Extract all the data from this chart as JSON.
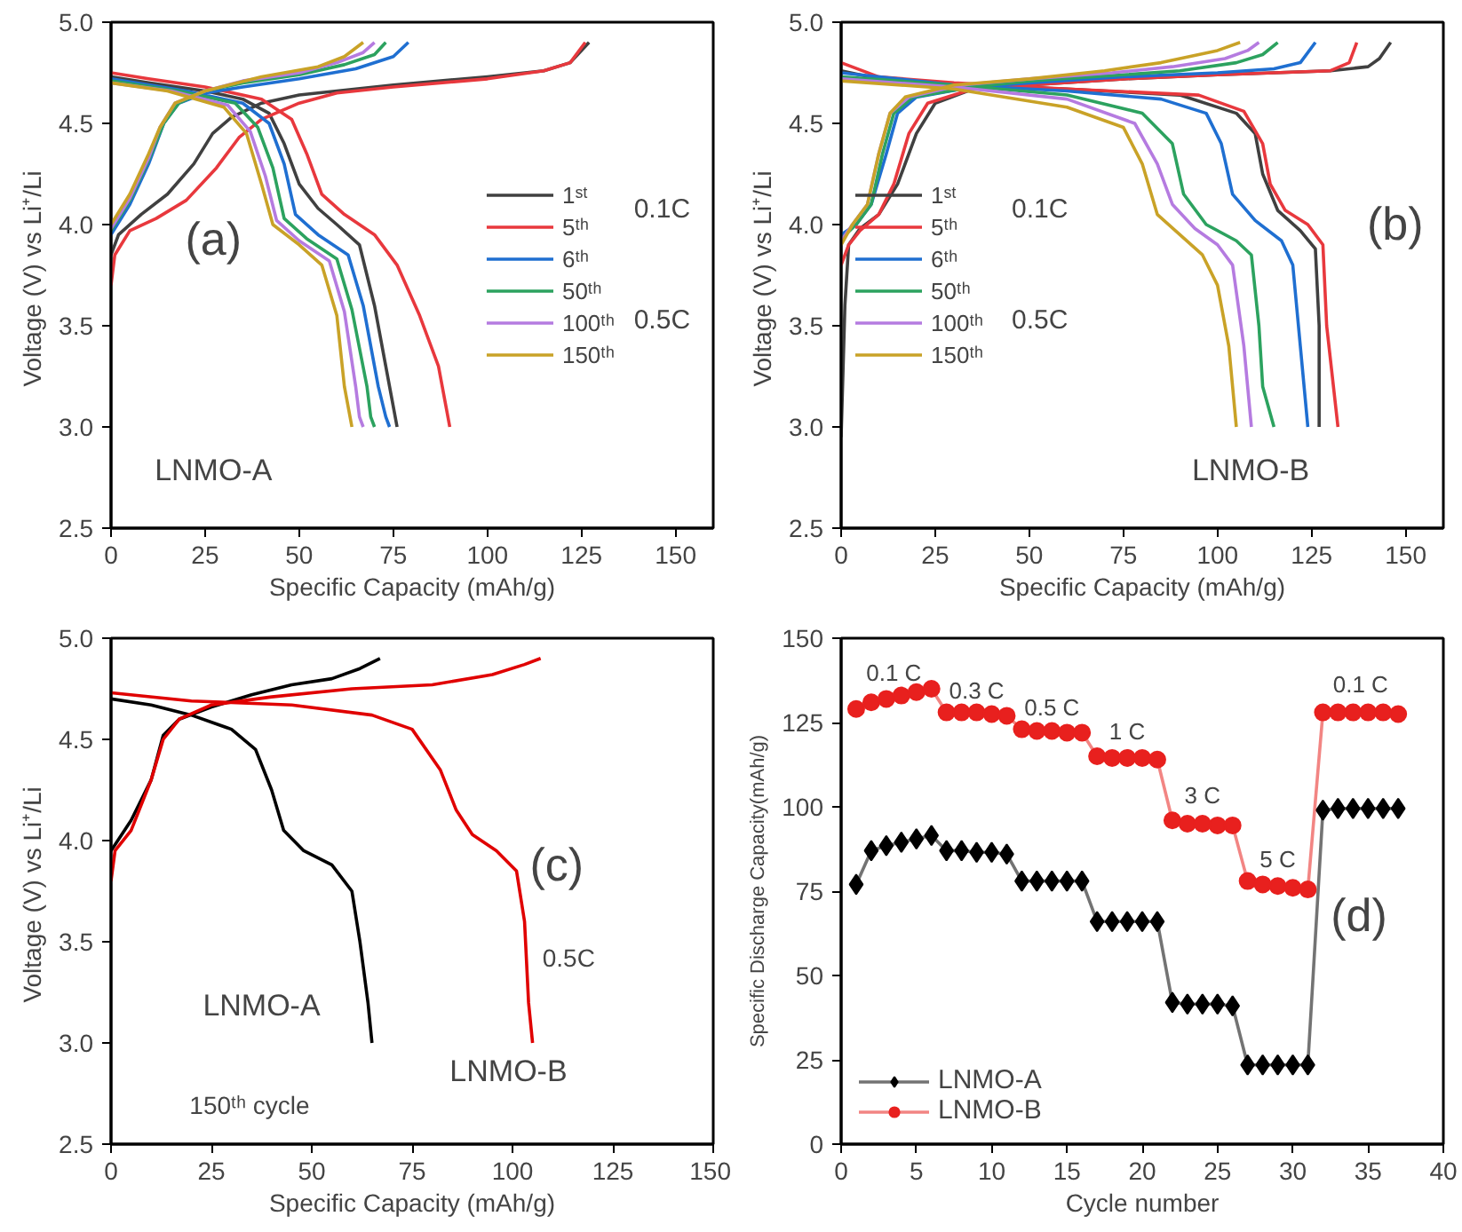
{
  "chart_data": [
    {
      "type": "line",
      "xlabel": "Specific Capacity (mAh/g)",
      "ylabel": "Voltage  (V) vs Li⁺/Li",
      "xlim": [
        0,
        160
      ],
      "ylim": [
        2.5,
        5.0
      ],
      "xticks": [
        0,
        25,
        50,
        75,
        100,
        125,
        150
      ],
      "yticks": [
        2.5,
        {
          "value": 3,
          "label": "3.0"
        },
        3.5,
        {
          "value": 4,
          "label": "4.0"
        },
        4.5,
        {
          "value": 5,
          "label": "5.0"
        }
      ],
      "grid": false,
      "legend": "right",
      "line_style": "solid",
      "marker": "none",
      "annotations": [
        "(a)",
        "LNMO-A",
        "0.1C",
        "0.5C"
      ],
      "series": [
        {
          "name": "1ˢᵗ",
          "color": "#404040",
          "x": [
            0,
            2,
            8,
            15,
            22,
            27,
            32,
            40,
            50,
            60,
            75,
            100,
            115,
            122,
            127,
            null,
            0,
            10,
            25,
            35,
            42,
            46,
            50,
            55,
            60,
            66,
            70,
            73,
            75,
            76
          ],
          "values": [
            3.85,
            3.95,
            4.05,
            4.15,
            4.3,
            4.45,
            4.53,
            4.6,
            4.64,
            4.66,
            4.69,
            4.73,
            4.76,
            4.8,
            4.9,
            null,
            4.73,
            4.7,
            4.66,
            4.62,
            4.55,
            4.4,
            4.2,
            4.08,
            4.0,
            3.9,
            3.6,
            3.3,
            3.1,
            3.0
          ]
        },
        {
          "name": "5ᵗʰ",
          "color": "#e8383d",
          "x": [
            0,
            1,
            5,
            12,
            20,
            28,
            34,
            40,
            50,
            60,
            75,
            100,
            115,
            122,
            126,
            null,
            0,
            10,
            25,
            40,
            48,
            52,
            56,
            62,
            70,
            76,
            82,
            87,
            89,
            90
          ],
          "values": [
            3.7,
            3.85,
            3.97,
            4.03,
            4.12,
            4.28,
            4.43,
            4.52,
            4.6,
            4.65,
            4.68,
            4.72,
            4.76,
            4.8,
            4.9,
            null,
            4.75,
            4.72,
            4.68,
            4.62,
            4.52,
            4.35,
            4.15,
            4.05,
            3.95,
            3.8,
            3.55,
            3.3,
            3.1,
            3.0
          ]
        },
        {
          "name": "6ᵗʰ",
          "color": "#1f6fd1",
          "x": [
            0,
            5,
            10,
            14,
            18,
            25,
            35,
            50,
            65,
            75,
            79,
            null,
            0,
            20,
            35,
            42,
            46,
            49,
            55,
            63,
            67,
            71,
            73,
            74
          ],
          "values": [
            3.95,
            4.1,
            4.3,
            4.5,
            4.6,
            4.65,
            4.68,
            4.72,
            4.77,
            4.83,
            4.9,
            null,
            4.72,
            4.66,
            4.6,
            4.5,
            4.3,
            4.05,
            3.95,
            3.85,
            3.6,
            3.2,
            3.05,
            3.0
          ]
        },
        {
          "name": "50ᵗʰ",
          "color": "#2ca25f",
          "x": [
            0,
            5,
            10,
            14,
            18,
            25,
            35,
            50,
            62,
            70,
            73,
            null,
            0,
            18,
            33,
            39,
            43,
            46,
            52,
            60,
            64,
            68,
            69,
            70
          ],
          "values": [
            3.97,
            4.12,
            4.32,
            4.5,
            4.6,
            4.66,
            4.7,
            4.74,
            4.79,
            4.84,
            4.9,
            null,
            4.71,
            4.66,
            4.6,
            4.48,
            4.28,
            4.03,
            3.93,
            3.83,
            3.58,
            3.2,
            3.05,
            3.0
          ]
        },
        {
          "name": "100ᵗʰ",
          "color": "#b57be0",
          "x": [
            0,
            5,
            10,
            13,
            17,
            25,
            35,
            50,
            60,
            67,
            70,
            null,
            0,
            16,
            31,
            37,
            41,
            44,
            50,
            58,
            62,
            65,
            66,
            67
          ],
          "values": [
            3.98,
            4.13,
            4.33,
            4.48,
            4.6,
            4.66,
            4.71,
            4.75,
            4.8,
            4.85,
            4.9,
            null,
            4.7,
            4.66,
            4.59,
            4.46,
            4.24,
            4.02,
            3.92,
            3.82,
            3.57,
            3.2,
            3.05,
            3.0
          ]
        },
        {
          "name": "150ᵗʰ",
          "color": "#c9a227",
          "x": [
            0,
            5,
            10,
            13,
            17,
            25,
            40,
            55,
            62,
            67,
            null,
            0,
            15,
            30,
            36,
            40,
            43,
            50,
            56,
            60,
            62,
            64
          ],
          "values": [
            4.0,
            4.15,
            4.35,
            4.48,
            4.6,
            4.66,
            4.73,
            4.78,
            4.83,
            4.9,
            null,
            4.7,
            4.66,
            4.58,
            4.45,
            4.2,
            4.0,
            3.9,
            3.8,
            3.55,
            3.2,
            3.0
          ]
        }
      ]
    },
    {
      "type": "line",
      "xlabel": "Specific Capacity (mAh/g)",
      "ylabel": "Voltage  (V) vs Li⁺/Li",
      "xlim": [
        0,
        160
      ],
      "ylim": [
        2.5,
        5.0
      ],
      "xticks": [
        0,
        25,
        50,
        75,
        100,
        125,
        150
      ],
      "yticks": [
        2.5,
        {
          "value": 3,
          "label": "3.0"
        },
        3.5,
        {
          "value": 4,
          "label": "4.0"
        },
        4.5,
        {
          "value": 5,
          "label": "5.0"
        }
      ],
      "grid": false,
      "legend": "left",
      "line_style": "solid",
      "marker": "none",
      "annotations": [
        "(b)",
        "LNMO-B",
        "0.1C",
        "0.5C"
      ],
      "series": [
        {
          "name": "1ˢᵗ",
          "color": "#404040",
          "x": [
            0,
            1,
            2,
            5,
            10,
            15,
            20,
            25,
            35,
            50,
            75,
            100,
            130,
            140,
            143,
            146,
            null,
            0,
            10,
            30,
            60,
            90,
            105,
            110,
            112,
            116,
            122,
            126,
            127,
            127
          ],
          "values": [
            2.95,
            3.6,
            3.9,
            3.98,
            4.05,
            4.2,
            4.45,
            4.6,
            4.67,
            4.69,
            4.72,
            4.74,
            4.76,
            4.78,
            4.82,
            4.9,
            null,
            4.76,
            4.72,
            4.69,
            4.67,
            4.64,
            4.55,
            4.45,
            4.25,
            4.07,
            3.97,
            3.88,
            3.5,
            3.0
          ]
        },
        {
          "name": "5ᵗʰ",
          "color": "#e8383d",
          "x": [
            0,
            2,
            5,
            10,
            14,
            18,
            23,
            35,
            50,
            75,
            100,
            130,
            135,
            137,
            null,
            0,
            10,
            30,
            60,
            95,
            107,
            112,
            114,
            118,
            124,
            128,
            129,
            132
          ],
          "values": [
            3.8,
            3.9,
            3.97,
            4.05,
            4.2,
            4.45,
            4.6,
            4.67,
            4.69,
            4.72,
            4.74,
            4.76,
            4.8,
            4.9,
            null,
            4.8,
            4.73,
            4.7,
            4.67,
            4.64,
            4.56,
            4.4,
            4.2,
            4.07,
            4.0,
            3.9,
            3.5,
            3.0
          ]
        },
        {
          "name": "6ᵗʰ",
          "color": "#1f6fd1",
          "x": [
            0,
            4,
            8,
            12,
            15,
            20,
            35,
            50,
            75,
            100,
            115,
            122,
            126,
            null,
            0,
            30,
            60,
            85,
            97,
            101,
            104,
            110,
            117,
            120,
            122,
            124
          ],
          "values": [
            3.95,
            4.0,
            4.1,
            4.35,
            4.55,
            4.63,
            4.68,
            4.7,
            4.73,
            4.75,
            4.77,
            4.8,
            4.9,
            null,
            4.75,
            4.69,
            4.66,
            4.62,
            4.55,
            4.4,
            4.15,
            4.02,
            3.92,
            3.8,
            3.4,
            3.0
          ]
        },
        {
          "name": "50ᵗʰ",
          "color": "#2ca25f",
          "x": [
            0,
            4,
            8,
            11,
            14,
            19,
            35,
            50,
            75,
            90,
            105,
            112,
            116,
            null,
            0,
            30,
            60,
            80,
            88,
            91,
            97,
            105,
            109,
            111,
            112,
            115
          ],
          "values": [
            3.93,
            4.0,
            4.1,
            4.35,
            4.55,
            4.63,
            4.68,
            4.71,
            4.74,
            4.76,
            4.8,
            4.84,
            4.9,
            null,
            4.73,
            4.69,
            4.64,
            4.55,
            4.4,
            4.15,
            4.0,
            3.92,
            3.85,
            3.5,
            3.2,
            3.0
          ]
        },
        {
          "name": "100ᵗʰ",
          "color": "#b57be0",
          "x": [
            0,
            3,
            7,
            10,
            13,
            18,
            32,
            50,
            72,
            88,
            102,
            108,
            111,
            null,
            0,
            30,
            60,
            78,
            84,
            88,
            94,
            100,
            104,
            107,
            109
          ],
          "values": [
            3.92,
            4.0,
            4.1,
            4.35,
            4.55,
            4.63,
            4.69,
            4.72,
            4.75,
            4.78,
            4.82,
            4.86,
            4.9,
            null,
            4.72,
            4.68,
            4.62,
            4.5,
            4.3,
            4.1,
            3.98,
            3.9,
            3.8,
            3.4,
            3.0
          ]
        },
        {
          "name": "150ᵗʰ",
          "color": "#c9a227",
          "x": [
            0,
            3,
            7,
            10,
            13,
            17,
            30,
            50,
            70,
            85,
            100,
            106,
            null,
            0,
            30,
            60,
            75,
            80,
            84,
            90,
            96,
            100,
            103,
            105
          ],
          "values": [
            3.9,
            4.0,
            4.1,
            4.35,
            4.55,
            4.63,
            4.69,
            4.72,
            4.76,
            4.8,
            4.86,
            4.9,
            null,
            4.71,
            4.67,
            4.58,
            4.48,
            4.3,
            4.05,
            3.95,
            3.85,
            3.7,
            3.4,
            3.0
          ]
        }
      ]
    },
    {
      "type": "line",
      "xlabel": "Specific Capacity (mAh/g)",
      "ylabel": "Voltage  (V) vs Li⁺/Li",
      "xlim": [
        0,
        150
      ],
      "ylim": [
        2.5,
        5.0
      ],
      "xticks": [
        0,
        25,
        50,
        75,
        100,
        125,
        150
      ],
      "yticks": [
        2.5,
        {
          "value": 3,
          "label": "3.0"
        },
        3.5,
        {
          "value": 4,
          "label": "4.0"
        },
        4.5,
        {
          "value": 5,
          "label": "5.0"
        }
      ],
      "grid": false,
      "line_style": "solid",
      "marker": "none",
      "annotations": [
        "(c)",
        "LNMO-A",
        "LNMO-B",
        "150ᵗʰ cycle",
        "0.5C"
      ],
      "series": [
        {
          "color": "#000000",
          "x": [
            0,
            5,
            10,
            13,
            17,
            25,
            35,
            45,
            55,
            62,
            67,
            null,
            0,
            10,
            20,
            30,
            36,
            40,
            43,
            48,
            55,
            60,
            62,
            64,
            65
          ],
          "values": [
            3.95,
            4.1,
            4.3,
            4.52,
            4.6,
            4.66,
            4.72,
            4.77,
            4.8,
            4.85,
            4.9,
            null,
            4.7,
            4.67,
            4.62,
            4.55,
            4.45,
            4.25,
            4.05,
            3.95,
            3.88,
            3.75,
            3.5,
            3.2,
            3.0
          ]
        },
        {
          "color": "#e00000",
          "x": [
            0,
            1,
            5,
            10,
            13,
            17,
            25,
            40,
            60,
            80,
            95,
            103,
            107,
            null,
            0,
            20,
            45,
            65,
            75,
            82,
            86,
            90,
            96,
            101,
            103,
            104,
            105
          ],
          "values": [
            3.8,
            3.95,
            4.05,
            4.3,
            4.5,
            4.6,
            4.67,
            4.71,
            4.75,
            4.77,
            4.82,
            4.87,
            4.9,
            null,
            4.73,
            4.69,
            4.67,
            4.62,
            4.55,
            4.35,
            4.15,
            4.03,
            3.95,
            3.85,
            3.6,
            3.2,
            3.0
          ]
        }
      ]
    },
    {
      "type": "line",
      "xlabel": "Cycle number",
      "ylabel": "Specific Discharge Capacity(mAh/g)",
      "xlim": [
        0,
        40
      ],
      "ylim": [
        0,
        150
      ],
      "xticks": [
        0,
        5,
        10,
        15,
        20,
        25,
        30,
        35,
        40
      ],
      "yticks": [
        0,
        25,
        50,
        75,
        100,
        125,
        150
      ],
      "grid": false,
      "legend": "bottom left",
      "line_style": "solid",
      "annotations": [
        "0.1 C",
        "0.3 C",
        "0.5 C",
        "1 C",
        "3 C",
        "5 C",
        "0.1 C",
        "(d)"
      ],
      "x": [
        1,
        2,
        3,
        4,
        5,
        6,
        7,
        8,
        9,
        10,
        11,
        12,
        13,
        14,
        15,
        16,
        17,
        18,
        19,
        20,
        21,
        22,
        23,
        24,
        25,
        26,
        27,
        28,
        29,
        30,
        31,
        32,
        33,
        34,
        35,
        36,
        37
      ],
      "series": [
        {
          "name": "LNMO-A",
          "color": "#000000",
          "marker": "diamond",
          "values": [
            77,
            87,
            88.5,
            89.5,
            90.5,
            91.5,
            87,
            87,
            86.5,
            86.5,
            86,
            78,
            78,
            78,
            78,
            78,
            66,
            66,
            66,
            66,
            66,
            42,
            41.5,
            41.5,
            41.5,
            41,
            23.5,
            23.5,
            23.5,
            23.5,
            23.5,
            99,
            99.5,
            99.5,
            99.5,
            99.5,
            99.5
          ]
        },
        {
          "name": "LNMO-B",
          "color": "#e8201e",
          "marker": "circle",
          "values": [
            129,
            131,
            132,
            133,
            134,
            135,
            128,
            128,
            128,
            127.5,
            127,
            123,
            122.5,
            122.5,
            122,
            122,
            115,
            114.5,
            114.5,
            114.5,
            114,
            96,
            95,
            95,
            94.5,
            94.5,
            78,
            77,
            76.5,
            76,
            75.5,
            128,
            128,
            128,
            128,
            128,
            127.5
          ]
        }
      ]
    }
  ]
}
